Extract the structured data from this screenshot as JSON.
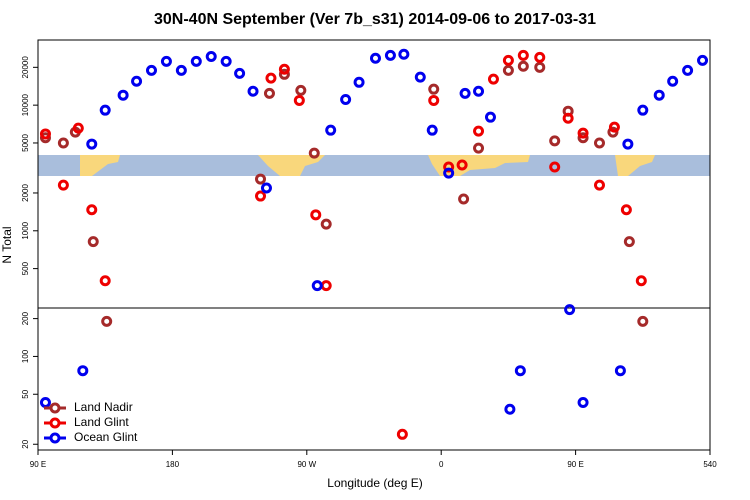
{
  "chart_data": {
    "type": "scatter",
    "title": "30N-40N September (Ver 7b_s31)   2014-09-06 to 2017-03-31",
    "x_label": "Longitude (deg E)",
    "y_label": "N Total",
    "log_y": true,
    "legend": "lower left",
    "xlim": [
      90,
      540
    ],
    "xticks": [
      {
        "value": 90,
        "label": "90 E"
      },
      180,
      {
        "value": 270,
        "label": "90 W"
      },
      {
        "value": 360,
        "label": "0"
      },
      {
        "value": 450,
        "label": "90 E"
      },
      540
    ],
    "ylim": [
      18,
      33000
    ],
    "yticks": [
      20,
      50,
      100,
      200,
      500,
      1000,
      2000,
      5000,
      10000,
      20000
    ],
    "series": [
      {
        "name": "Land Nadir",
        "color": "#a52a2a",
        "x": [
          95,
          107,
          115,
          127,
          136,
          239,
          245,
          255,
          266,
          275,
          283,
          355,
          375,
          385,
          405,
          415,
          426,
          436,
          445,
          455,
          466,
          475,
          486,
          495
        ],
        "values": [
          5500,
          5000,
          6100,
          820,
          190,
          2580,
          12400,
          17600,
          13100,
          4150,
          1130,
          13400,
          1790,
          4550,
          18900,
          20400,
          20000,
          5200,
          8950,
          5500,
          5000,
          6100,
          820,
          190
        ]
      },
      {
        "name": "Land Glint",
        "color": "#ee0000",
        "x": [
          95,
          107,
          117,
          126,
          135,
          239,
          246,
          255,
          265,
          276,
          283,
          355,
          365,
          374,
          385,
          395,
          405,
          415,
          426,
          436,
          445,
          455,
          466,
          476,
          484,
          494,
          334
        ],
        "values": [
          5900,
          2310,
          6560,
          1470,
          400,
          1890,
          16400,
          19300,
          10900,
          1340,
          366,
          10900,
          3220,
          3340,
          6210,
          16100,
          22700,
          24900,
          24000,
          3220,
          7870,
          5990,
          2310,
          6680,
          1470,
          400,
          24
        ]
      },
      {
        "name": "Ocean Glint",
        "color": "#0000ee",
        "x": [
          95,
          120,
          126,
          135,
          147,
          156,
          166,
          176,
          186,
          196,
          206,
          216,
          225,
          234,
          243,
          277,
          286,
          296,
          305,
          316,
          326,
          335,
          346,
          354,
          365,
          376,
          385,
          393,
          406,
          413,
          446,
          455,
          480,
          485,
          495,
          506,
          515,
          525,
          535
        ],
        "values": [
          43,
          77,
          4900,
          9120,
          12000,
          15500,
          18900,
          22300,
          18900,
          22300,
          24400,
          22300,
          17900,
          12900,
          2190,
          366,
          6320,
          11100,
          15200,
          23600,
          24900,
          25400,
          16700,
          6320,
          2880,
          12400,
          12900,
          8020,
          38,
          77,
          236,
          43,
          77,
          4900,
          9120,
          12000,
          15500,
          18900,
          22700
        ]
      }
    ]
  }
}
